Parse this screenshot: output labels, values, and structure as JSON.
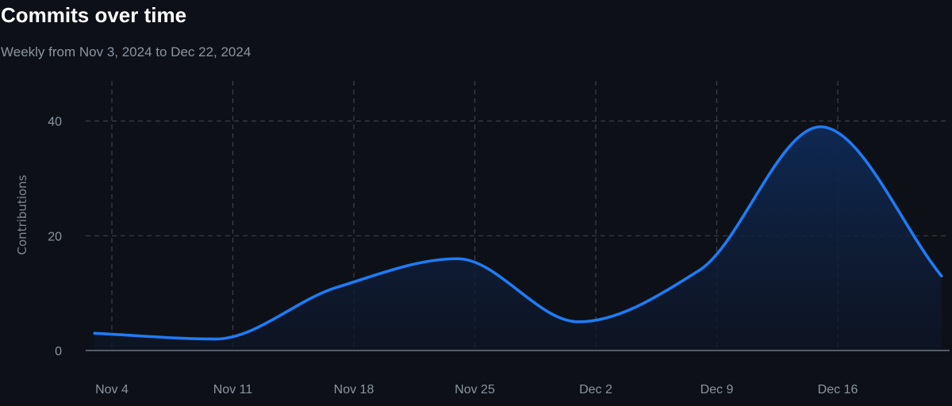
{
  "header": {
    "title": "Commits over time",
    "subtitle": "Weekly from Nov 3, 2024 to Dec 22, 2024"
  },
  "colors": {
    "background": "#0d1117",
    "line": "#1f7bf5",
    "area_top": "#0f2a56",
    "area_bottom": "#0d1526",
    "grid": "#3a3f47",
    "axis": "#6e7681",
    "text_muted": "#8b949e"
  },
  "chart_data": {
    "type": "area",
    "title": "Commits over time",
    "subtitle": "Weekly from Nov 3, 2024 to Dec 22, 2024",
    "xlabel": "",
    "ylabel": "Contributions",
    "x_tick_labels": [
      "Nov 4",
      "Nov 11",
      "Nov 18",
      "Nov 25",
      "Dec 2",
      "Dec 9",
      "Dec 16"
    ],
    "x": [
      "2024-11-03",
      "2024-11-10",
      "2024-11-17",
      "2024-11-24",
      "2024-12-01",
      "2024-12-08",
      "2024-12-15",
      "2024-12-22"
    ],
    "xlim": [
      "2024-11-03",
      "2024-12-22"
    ],
    "y_ticks": [
      0,
      20,
      40
    ],
    "ylim": [
      0,
      47
    ],
    "grid": true,
    "curve": "smooth",
    "series": [
      {
        "values": [
          3,
          2,
          11,
          16,
          5,
          14,
          39,
          13
        ]
      }
    ]
  }
}
